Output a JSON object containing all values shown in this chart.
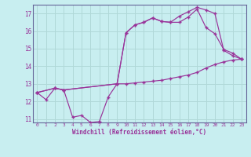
{
  "background_color": "#c8eef0",
  "grid_color": "#b0d8d8",
  "line_color": "#993399",
  "spine_color": "#666699",
  "xlabel": "Windchill (Refroidissement éolien,°C)",
  "xlim": [
    -0.5,
    23.5
  ],
  "ylim": [
    10.8,
    17.5
  ],
  "yticks": [
    11,
    12,
    13,
    14,
    15,
    16,
    17
  ],
  "xticks": [
    0,
    1,
    2,
    3,
    4,
    5,
    6,
    7,
    8,
    9,
    10,
    11,
    12,
    13,
    14,
    15,
    16,
    17,
    18,
    19,
    20,
    21,
    22,
    23
  ],
  "line1_x": [
    0,
    1,
    2,
    3,
    4,
    5,
    6,
    7,
    8,
    9,
    10,
    11,
    12,
    13,
    14,
    15,
    16,
    17,
    18,
    19,
    20,
    21,
    22,
    23
  ],
  "line1_y": [
    12.5,
    12.1,
    12.75,
    12.65,
    11.1,
    11.2,
    10.8,
    10.85,
    12.25,
    13.0,
    13.0,
    13.05,
    13.1,
    13.15,
    13.2,
    13.3,
    13.4,
    13.5,
    13.65,
    13.9,
    14.1,
    14.25,
    14.35,
    14.4
  ],
  "line2_x": [
    0,
    2,
    3,
    9,
    10,
    11,
    12,
    13,
    14,
    15,
    16,
    17,
    18,
    19,
    20,
    21,
    22,
    23
  ],
  "line2_y": [
    12.5,
    12.75,
    12.65,
    13.0,
    15.9,
    16.35,
    16.5,
    16.75,
    16.55,
    16.5,
    16.5,
    16.8,
    17.25,
    16.2,
    15.85,
    14.95,
    14.75,
    14.4
  ],
  "line3_x": [
    0,
    2,
    3,
    9,
    10,
    11,
    12,
    13,
    14,
    15,
    16,
    17,
    18,
    19,
    20,
    21,
    22,
    23
  ],
  "line3_y": [
    12.5,
    12.75,
    12.65,
    13.0,
    15.9,
    16.35,
    16.5,
    16.75,
    16.55,
    16.5,
    16.85,
    17.1,
    17.35,
    17.2,
    17.0,
    14.9,
    14.6,
    14.4
  ]
}
